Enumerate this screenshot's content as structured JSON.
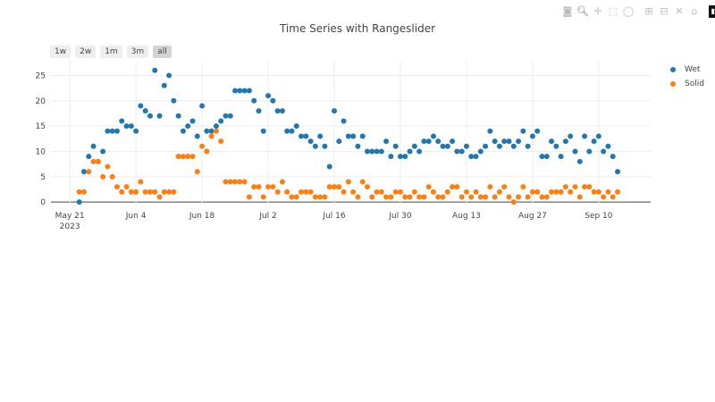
{
  "chart_data": {
    "type": "scatter",
    "title": "Time Series with Rangeslider",
    "xlabel": "",
    "ylabel": "",
    "xlim": [
      "2023-05-17",
      "2023-09-21"
    ],
    "ylim": [
      -0.5,
      27.9
    ],
    "grid": true,
    "legend_placement": "right",
    "x_start": "2023-05-23",
    "x_end": "2023-09-14",
    "x_ticks": [
      {
        "date": "2023-05-21",
        "label": "May 21",
        "sublabel": "2023"
      },
      {
        "date": "2023-06-04",
        "label": "Jun 4"
      },
      {
        "date": "2023-06-18",
        "label": "Jun 18"
      },
      {
        "date": "2023-07-02",
        "label": "Jul 2"
      },
      {
        "date": "2023-07-16",
        "label": "Jul 16"
      },
      {
        "date": "2023-07-30",
        "label": "Jul 30"
      },
      {
        "date": "2023-08-13",
        "label": "Aug 13"
      },
      {
        "date": "2023-08-27",
        "label": "Aug 27"
      },
      {
        "date": "2023-09-10",
        "label": "Sep 10"
      }
    ],
    "y_ticks": [
      "0",
      "5",
      "10",
      "15",
      "20",
      "25"
    ],
    "series": [
      {
        "name": "Wet",
        "color": "#1f77b4",
        "values": [
          0,
          6,
          9,
          11,
          8,
          10,
          14,
          14,
          14,
          16,
          15,
          15,
          14,
          19,
          18,
          17,
          26,
          17,
          23,
          25,
          20,
          17,
          14,
          15,
          16,
          13,
          19,
          14,
          14,
          15,
          16,
          17,
          17,
          22,
          22,
          22,
          22,
          20,
          18,
          14,
          21,
          20,
          18,
          18,
          14,
          14,
          15,
          13,
          13,
          12,
          11,
          13,
          11,
          7,
          18,
          12,
          16,
          13,
          13,
          11,
          13,
          10,
          10,
          10,
          10,
          12,
          9,
          11,
          9,
          9,
          10,
          11,
          10,
          12,
          12,
          13,
          12,
          11,
          11,
          12,
          10,
          10,
          11,
          9,
          9,
          10,
          11,
          14,
          12,
          11,
          12,
          12,
          11,
          12,
          14,
          11,
          13,
          14,
          9,
          9,
          12,
          11,
          9,
          12,
          13,
          10,
          8,
          13,
          10,
          12,
          13,
          10,
          11,
          9,
          6
        ]
      },
      {
        "name": "Solid",
        "color": "#ff7f0e",
        "values": [
          2,
          2,
          6,
          8,
          8,
          5,
          7,
          5,
          3,
          2,
          3,
          2,
          2,
          4,
          2,
          2,
          2,
          1,
          2,
          2,
          2,
          9,
          9,
          9,
          9,
          6,
          11,
          10,
          13,
          14,
          12,
          4,
          4,
          4,
          4,
          4,
          1,
          3,
          3,
          1,
          3,
          3,
          2,
          4,
          2,
          1,
          1,
          2,
          2,
          2,
          1,
          1,
          1,
          3,
          3,
          3,
          2,
          4,
          2,
          1,
          4,
          3,
          1,
          2,
          2,
          1,
          1,
          2,
          2,
          1,
          1,
          2,
          1,
          1,
          3,
          2,
          1,
          1,
          2,
          3,
          3,
          1,
          2,
          1,
          2,
          1,
          1,
          3,
          1,
          2,
          3,
          1,
          0,
          1,
          3,
          1,
          2,
          2,
          1,
          1,
          2,
          2,
          2,
          3,
          2,
          3,
          1,
          3,
          3,
          2,
          2,
          1,
          2,
          1,
          2
        ]
      }
    ]
  },
  "range_selector": {
    "buttons": [
      "1w",
      "2w",
      "1m",
      "3m",
      "all"
    ],
    "active": "all"
  },
  "modebar": [
    "camera-icon",
    "zoom-icon",
    "pan-icon",
    "box-select-icon",
    "lasso-icon",
    "zoom-in-icon",
    "zoom-out-icon",
    "autoscale-icon",
    "home-icon",
    "plotly-logo-icon"
  ]
}
